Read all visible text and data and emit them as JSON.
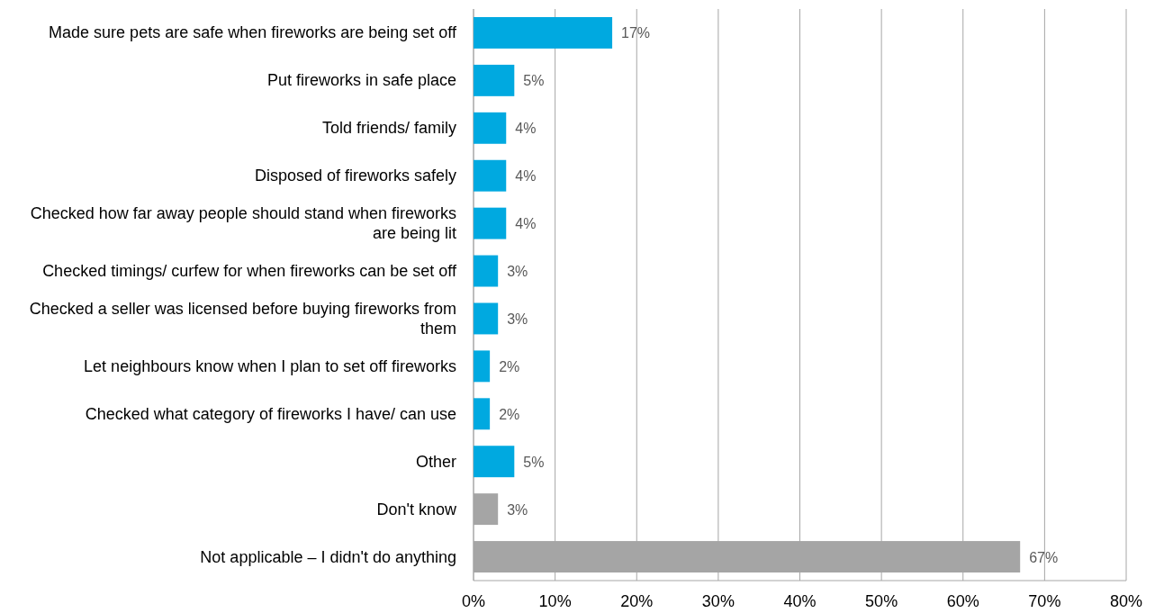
{
  "chart_data": {
    "type": "bar",
    "orientation": "horizontal",
    "categories": [
      "Made sure pets are safe when fireworks are being set off",
      "Put fireworks in safe place",
      "Told friends/ family",
      "Disposed of fireworks safely",
      "Checked how far away people should stand when fireworks are being lit",
      "Checked timings/ curfew for when fireworks can be set off",
      "Checked a seller was licensed before buying fireworks from them",
      "Let neighbours know when I plan to set off fireworks",
      "Checked what category of fireworks I have/ can use",
      "Other",
      "Don't know",
      "Not applicable – I didn't do anything"
    ],
    "values": [
      17,
      5,
      4,
      4,
      4,
      3,
      3,
      2,
      2,
      5,
      3,
      67
    ],
    "colors": [
      "#00a9e0",
      "#00a9e0",
      "#00a9e0",
      "#00a9e0",
      "#00a9e0",
      "#00a9e0",
      "#00a9e0",
      "#00a9e0",
      "#00a9e0",
      "#00a9e0",
      "#a5a5a5",
      "#a5a5a5"
    ],
    "value_labels": [
      "17%",
      "5%",
      "4%",
      "4%",
      "4%",
      "3%",
      "3%",
      "2%",
      "2%",
      "5%",
      "3%",
      "67%"
    ],
    "xlim": [
      0,
      80
    ],
    "xticks": [
      {
        "value": 0,
        "label": "0%"
      },
      {
        "value": 10,
        "label": "10%"
      },
      {
        "value": 20,
        "label": "20%"
      },
      {
        "value": 30,
        "label": "30%"
      },
      {
        "value": 40,
        "label": "40%"
      },
      {
        "value": 50,
        "label": "50%"
      },
      {
        "value": 60,
        "label": "60%"
      },
      {
        "value": 70,
        "label": "70%"
      },
      {
        "value": 80,
        "label": "80%"
      }
    ],
    "grid": "x"
  }
}
